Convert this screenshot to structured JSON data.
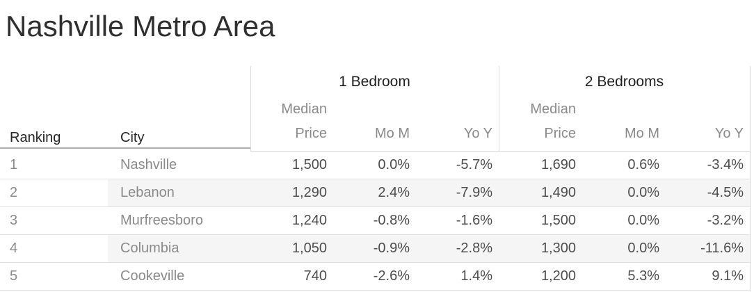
{
  "title": "Nashville Metro Area",
  "table": {
    "header": {
      "ranking": "Ranking",
      "city": "City",
      "group_1br": "1 Bedroom",
      "group_2br": "2 Bedrooms",
      "median_line1": "Median",
      "median_line2": "Price",
      "mom": "Mo M",
      "yoy": "Yo Y"
    },
    "rows": [
      {
        "banded": false,
        "cells": [
          "1",
          "Nashville",
          "1,500",
          "0.0%",
          "-5.7%",
          "1,690",
          "0.6%",
          "-3.4%"
        ]
      },
      {
        "banded": true,
        "cells": [
          "2",
          "Lebanon",
          "1,290",
          "2.4%",
          "-7.9%",
          "1,490",
          "0.0%",
          "-4.5%"
        ]
      },
      {
        "banded": false,
        "cells": [
          "3",
          "Murfreesboro",
          "1,240",
          "-0.8%",
          "-1.6%",
          "1,500",
          "0.0%",
          "-3.2%"
        ]
      },
      {
        "banded": true,
        "cells": [
          "4",
          "Columbia",
          "1,050",
          "-0.9%",
          "-2.8%",
          "1,300",
          "0.0%",
          "-11.6%"
        ]
      },
      {
        "banded": false,
        "cells": [
          "5",
          "Cookeville",
          "740",
          "-2.6%",
          "1.4%",
          "1,200",
          "5.3%",
          "9.1%"
        ]
      }
    ]
  },
  "chart_data": {
    "type": "table",
    "title": "Nashville Metro Area",
    "row_dimensions": [
      "Ranking",
      "City"
    ],
    "column_groups": [
      "1 Bedroom",
      "2 Bedrooms"
    ],
    "measures": [
      "Median Price",
      "Mo M",
      "Yo Y"
    ],
    "rows": [
      {
        "ranking": 1,
        "city": "Nashville",
        "one_bedroom": {
          "median_price": 1500,
          "mom_pct": 0.0,
          "yoy_pct": -5.7
        },
        "two_bedrooms": {
          "median_price": 1690,
          "mom_pct": 0.6,
          "yoy_pct": -3.4
        }
      },
      {
        "ranking": 2,
        "city": "Lebanon",
        "one_bedroom": {
          "median_price": 1290,
          "mom_pct": 2.4,
          "yoy_pct": -7.9
        },
        "two_bedrooms": {
          "median_price": 1490,
          "mom_pct": 0.0,
          "yoy_pct": -4.5
        }
      },
      {
        "ranking": 3,
        "city": "Murfreesboro",
        "one_bedroom": {
          "median_price": 1240,
          "mom_pct": -0.8,
          "yoy_pct": -1.6
        },
        "two_bedrooms": {
          "median_price": 1500,
          "mom_pct": 0.0,
          "yoy_pct": -3.2
        }
      },
      {
        "ranking": 4,
        "city": "Columbia",
        "one_bedroom": {
          "median_price": 1050,
          "mom_pct": -0.9,
          "yoy_pct": -2.8
        },
        "two_bedrooms": {
          "median_price": 1300,
          "mom_pct": 0.0,
          "yoy_pct": -11.6
        }
      },
      {
        "ranking": 5,
        "city": "Cookeville",
        "one_bedroom": {
          "median_price": 740,
          "mom_pct": -2.6,
          "yoy_pct": 1.4
        },
        "two_bedrooms": {
          "median_price": 1200,
          "mom_pct": 5.3,
          "yoy_pct": 9.1
        }
      }
    ]
  },
  "colors": {
    "background": "#ffffff",
    "title_text": "#2f2f2f",
    "header_text": "#262626",
    "muted_text": "#8a8a8a",
    "value_text": "#4d4d4d",
    "row_banding": "#f5f5f5",
    "row_border": "#e1e1e1",
    "pane_border": "#d9d9d9",
    "header_underline": "#aeaeae"
  }
}
